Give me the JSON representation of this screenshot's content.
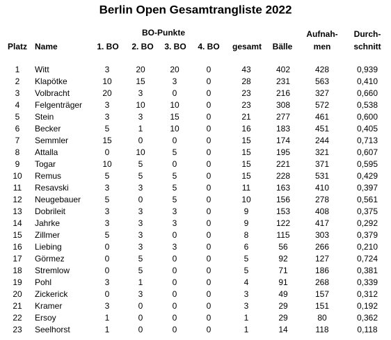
{
  "title": "Berlin Open Gesamtrangliste 2022",
  "header": {
    "group": "BO-Punkte",
    "columns": [
      [
        "Platz"
      ],
      [
        "Name"
      ],
      [
        "1. BO"
      ],
      [
        "2. BO"
      ],
      [
        "3. BO"
      ],
      [
        "4. BO"
      ],
      [
        "gesamt"
      ],
      [
        "Bälle"
      ],
      [
        "Aufnah-",
        "men"
      ],
      [
        "Durch-",
        "schnitt"
      ]
    ]
  },
  "table": {
    "rows": [
      [
        "1",
        "Witt",
        "3",
        "20",
        "20",
        "0",
        "43",
        "402",
        "428",
        "0,939"
      ],
      [
        "2",
        "Klapötke",
        "10",
        "15",
        "3",
        "0",
        "28",
        "231",
        "563",
        "0,410"
      ],
      [
        "3",
        "Volbracht",
        "20",
        "3",
        "0",
        "0",
        "23",
        "216",
        "327",
        "0,660"
      ],
      [
        "4",
        "Felgenträger",
        "3",
        "10",
        "10",
        "0",
        "23",
        "308",
        "572",
        "0,538"
      ],
      [
        "5",
        "Stein",
        "3",
        "3",
        "15",
        "0",
        "21",
        "277",
        "461",
        "0,600"
      ],
      [
        "6",
        "Becker",
        "5",
        "1",
        "10",
        "0",
        "16",
        "183",
        "451",
        "0,405"
      ],
      [
        "7",
        "Semmler",
        "15",
        "0",
        "0",
        "0",
        "15",
        "174",
        "244",
        "0,713"
      ],
      [
        "8",
        "Attalla",
        "0",
        "10",
        "5",
        "0",
        "15",
        "195",
        "321",
        "0,607"
      ],
      [
        "9",
        "Togar",
        "10",
        "5",
        "0",
        "0",
        "15",
        "221",
        "371",
        "0,595"
      ],
      [
        "10",
        "Remus",
        "5",
        "5",
        "5",
        "0",
        "15",
        "228",
        "531",
        "0,429"
      ],
      [
        "11",
        "Resavski",
        "3",
        "3",
        "5",
        "0",
        "11",
        "163",
        "410",
        "0,397"
      ],
      [
        "12",
        "Neugebauer",
        "5",
        "0",
        "5",
        "0",
        "10",
        "156",
        "278",
        "0,561"
      ],
      [
        "13",
        "Dobrileit",
        "3",
        "3",
        "3",
        "0",
        "9",
        "153",
        "408",
        "0,375"
      ],
      [
        "14",
        "Jahrke",
        "3",
        "3",
        "3",
        "0",
        "9",
        "122",
        "417",
        "0,292"
      ],
      [
        "15",
        "Zillmer",
        "5",
        "3",
        "0",
        "0",
        "8",
        "115",
        "303",
        "0,379"
      ],
      [
        "16",
        "Liebing",
        "0",
        "3",
        "3",
        "0",
        "6",
        "56",
        "266",
        "0,210"
      ],
      [
        "17",
        "Görmez",
        "0",
        "5",
        "0",
        "0",
        "5",
        "92",
        "127",
        "0,724"
      ],
      [
        "18",
        "Stremlow",
        "0",
        "5",
        "0",
        "0",
        "5",
        "71",
        "186",
        "0,381"
      ],
      [
        "19",
        "Pohl",
        "3",
        "1",
        "0",
        "0",
        "4",
        "91",
        "268",
        "0,339"
      ],
      [
        "20",
        "Zickerick",
        "0",
        "3",
        "0",
        "0",
        "3",
        "49",
        "157",
        "0,312"
      ],
      [
        "21",
        "Kramer",
        "3",
        "0",
        "0",
        "0",
        "3",
        "29",
        "151",
        "0,192"
      ],
      [
        "22",
        "Ersoy",
        "1",
        "0",
        "0",
        "0",
        "1",
        "29",
        "80",
        "0,362"
      ],
      [
        "23",
        "Seelhorst",
        "1",
        "0",
        "0",
        "0",
        "1",
        "14",
        "118",
        "0,118"
      ]
    ]
  }
}
